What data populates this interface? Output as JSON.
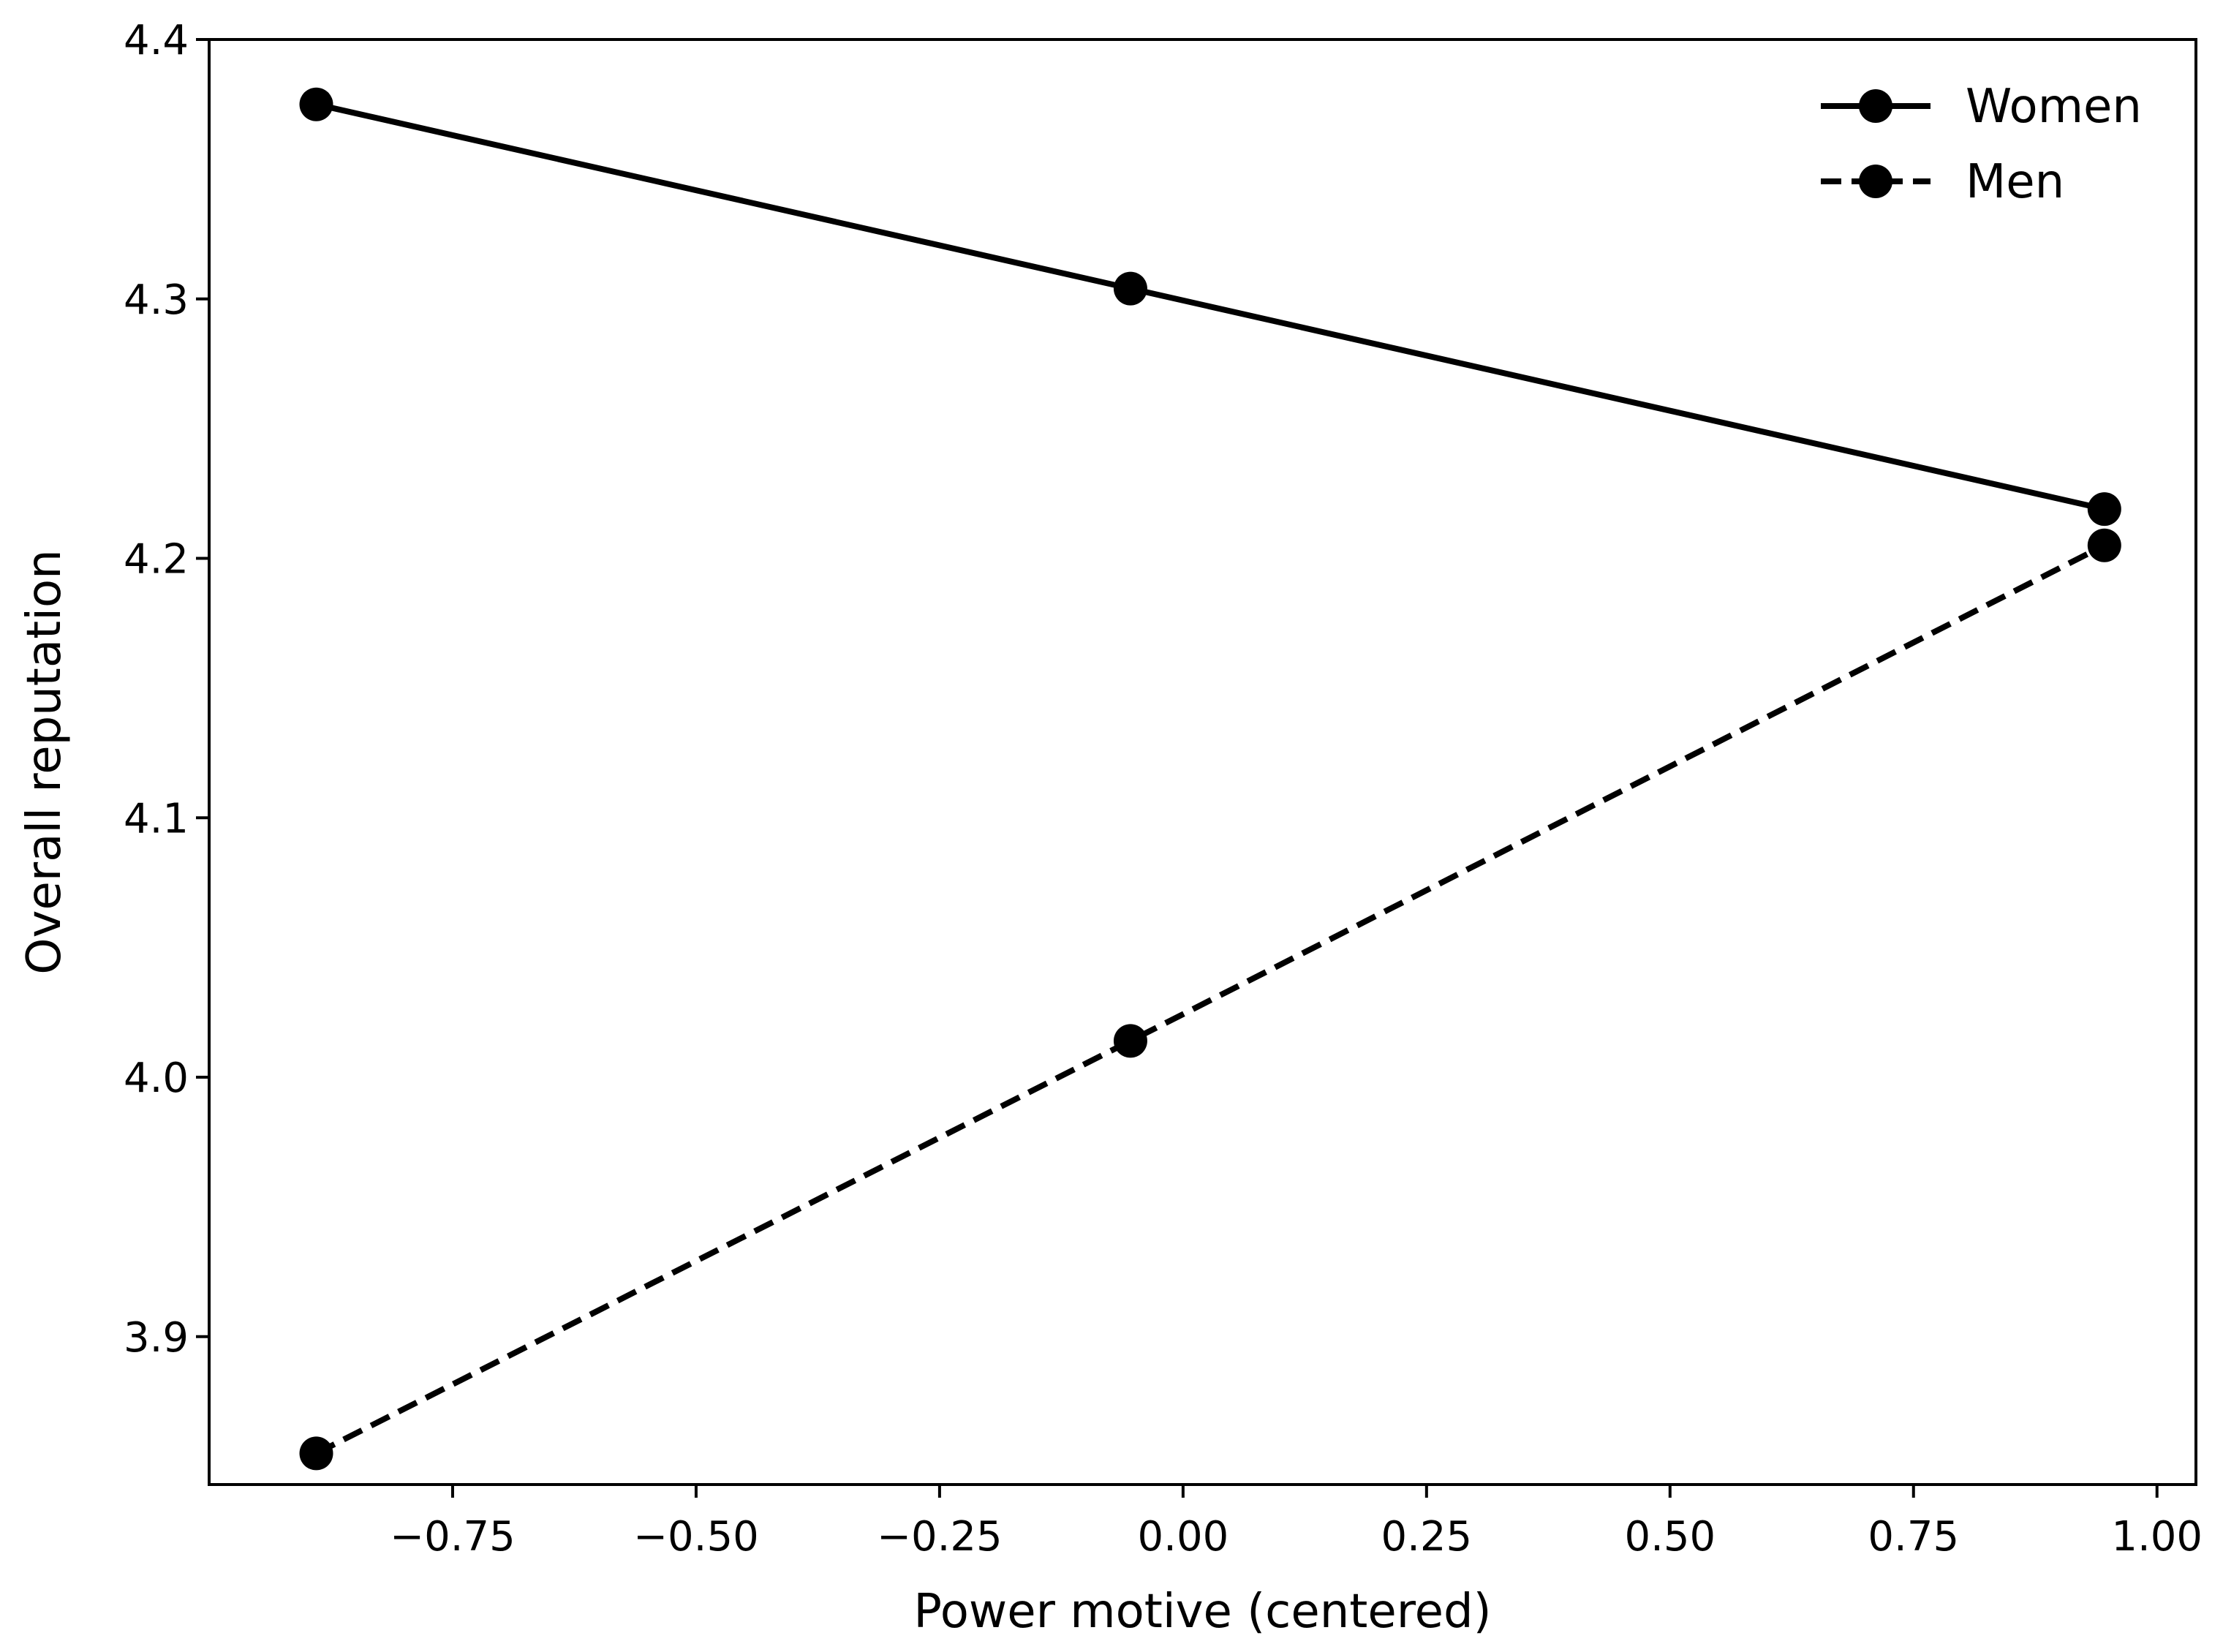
{
  "chart_data": {
    "type": "line",
    "title": "",
    "xlabel": "Power motive (centered)",
    "ylabel": "Overall reputation",
    "xlim": [
      -1.0,
      1.04
    ],
    "ylim": [
      3.843,
      4.4
    ],
    "xticks": [
      -0.75,
      -0.5,
      -0.25,
      0.0,
      0.25,
      0.5,
      0.75,
      1.0
    ],
    "xtick_labels": [
      "−0.75",
      "−0.50",
      "−0.25",
      "0.00",
      "0.25",
      "0.50",
      "0.75",
      "1.00"
    ],
    "yticks": [
      3.9,
      4.0,
      4.1,
      4.2,
      4.3,
      4.4
    ],
    "ytick_labels": [
      "3.9",
      "4.0",
      "4.1",
      "4.2",
      "4.3",
      "4.4"
    ],
    "grid": false,
    "legend_position": "top-right",
    "series": [
      {
        "name": "Women",
        "line_style": "solid",
        "marker": "circle",
        "color": "#000000",
        "x": [
          -0.89,
          -0.054,
          0.946
        ],
        "y": [
          4.375,
          4.304,
          4.219
        ]
      },
      {
        "name": "Men",
        "line_style": "dashed",
        "marker": "circle",
        "color": "#000000",
        "x": [
          -0.89,
          -0.054,
          0.946
        ],
        "y": [
          3.855,
          4.014,
          4.205
        ]
      }
    ]
  }
}
